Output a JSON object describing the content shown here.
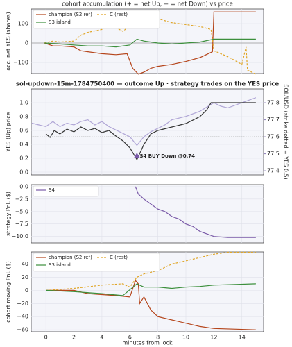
{
  "chart_data": [
    {
      "type": "line",
      "title": "cohort accumulation (+ = net Up, − = net Down) vs price",
      "ylabel": "acc. net YES (shares)",
      "xlim": [
        -1.05,
        15.55
      ],
      "xticks": [
        0,
        2,
        4,
        6,
        8,
        10,
        12,
        14
      ],
      "ylim": [
        -157,
        175
      ],
      "yticks": [
        {
          "value": -100,
          "label": "−100"
        },
        0,
        100
      ],
      "grid": true,
      "hline": 0,
      "legend": "upper-left",
      "legend_columns": 2,
      "series": [
        {
          "name": "champion (S2 ref)",
          "color": "#b5451b",
          "x": [
            -0.1,
            0.5,
            1,
            2,
            2.5,
            3,
            4,
            5,
            5.8,
            6.2,
            6.6,
            7,
            7.5,
            8,
            9,
            10,
            11,
            11.9,
            12,
            15
          ],
          "values": [
            0,
            -15,
            -15,
            -20,
            -40,
            -45,
            -55,
            -60,
            -55,
            -130,
            -160,
            -150,
            -130,
            -120,
            -110,
            -95,
            -75,
            -45,
            160,
            160
          ]
        },
        {
          "name": "C (rest)",
          "color": "#e0a526",
          "dash": true,
          "x": [
            -0.1,
            0.5,
            1,
            2,
            2.5,
            3,
            4,
            4.5,
            5,
            5.5,
            6,
            6.5,
            7,
            8,
            9,
            10,
            11,
            11.8,
            12,
            13,
            14,
            14.3,
            14.4,
            15
          ],
          "values": [
            0,
            10,
            5,
            10,
            40,
            55,
            70,
            110,
            80,
            60,
            90,
            150,
            145,
            125,
            105,
            95,
            85,
            70,
            -40,
            -70,
            -110,
            -20,
            -140,
            -160
          ]
        },
        {
          "name": "S3 island",
          "color": "#3c8f3c",
          "x": [
            -0.1,
            1,
            2,
            3,
            4,
            5,
            6,
            6.5,
            7,
            8,
            9,
            10,
            11,
            12,
            15
          ],
          "values": [
            0,
            -5,
            -10,
            -15,
            -15,
            -20,
            -10,
            20,
            10,
            0,
            -5,
            0,
            5,
            20,
            20
          ]
        }
      ]
    },
    {
      "type": "line",
      "title": "sol-updown-15m-1784750400 — outcome Up · strategy trades on the YES price",
      "ylabel": "YES (Up) price",
      "y2label": "SOL/USD (strike dotted = YES 0.5)",
      "xlim": [
        -1.05,
        15.55
      ],
      "xticks": [
        0,
        2,
        4,
        6,
        8,
        10,
        12,
        14
      ],
      "ylim": [
        -0.04,
        1.2
      ],
      "yticks": [
        {
          "value": 0,
          "label": "0.0"
        },
        0.2,
        0.4,
        0.6,
        0.8,
        {
          "value": 1,
          "label": "1.0"
        }
      ],
      "y2lim": [
        77.376,
        77.882
      ],
      "y2ticks": [
        77.4,
        77.5,
        77.6,
        77.7,
        77.8
      ],
      "y2color": "#8a7ab8",
      "grid": true,
      "strike_y2": 77.6,
      "series": [
        {
          "name": "SOL/USD",
          "color": "#b0a6d6",
          "axis": "y2",
          "x": [
            -1,
            -0.5,
            0,
            0.5,
            1,
            1.5,
            2,
            2.5,
            3,
            3.5,
            4,
            4.5,
            5,
            5.5,
            6,
            6.5,
            7,
            7.5,
            8,
            8.5,
            9,
            10,
            11,
            12,
            12.5,
            13,
            14,
            15
          ],
          "values": [
            77.68,
            77.67,
            77.66,
            77.69,
            77.66,
            77.68,
            77.67,
            77.69,
            77.7,
            77.67,
            77.69,
            77.66,
            77.64,
            77.62,
            77.6,
            77.55,
            77.6,
            77.63,
            77.65,
            77.67,
            77.7,
            77.72,
            77.75,
            77.8,
            77.78,
            77.77,
            77.8,
            77.83
          ]
        },
        {
          "name": "YES price",
          "color": "#333333",
          "x": [
            0,
            0.3,
            0.6,
            1,
            1.5,
            2,
            2.5,
            3,
            3.5,
            4,
            4.5,
            5,
            5.5,
            6,
            6.5,
            7,
            7.5,
            8,
            9,
            10,
            11,
            11.5,
            11.8,
            15
          ],
          "values": [
            0.55,
            0.5,
            0.6,
            0.55,
            0.62,
            0.58,
            0.65,
            0.6,
            0.63,
            0.57,
            0.6,
            0.52,
            0.45,
            0.35,
            0.18,
            0.4,
            0.55,
            0.6,
            0.65,
            0.7,
            0.8,
            0.9,
            1,
            1
          ]
        }
      ],
      "markers": [
        {
          "label": "S4 BUY Down @0.74",
          "x": 6.5,
          "y": 0.24,
          "color": "#7a5aa8"
        }
      ]
    },
    {
      "type": "line",
      "ylabel": "strategy PnL ($)",
      "xlim": [
        -1.05,
        15.55
      ],
      "xticks": [
        0,
        2,
        4,
        6,
        8,
        10,
        12,
        14
      ],
      "ylim": [
        -11.3,
        0.4
      ],
      "yticks": [
        {
          "value": -10,
          "label": "−10.0"
        },
        {
          "value": -7.5,
          "label": "−7.5"
        },
        {
          "value": -5,
          "label": "−5.0"
        },
        {
          "value": -2.5,
          "label": "−2.5"
        },
        {
          "value": 0,
          "label": "0.0"
        }
      ],
      "grid": true,
      "legend": "upper-left",
      "legend_columns": 1,
      "series": [
        {
          "name": "S4",
          "color": "#7a5aa8",
          "x": [
            6.4,
            6.6,
            7,
            7.5,
            8,
            8.5,
            9,
            9.5,
            10,
            10.5,
            11,
            11.5,
            12,
            13,
            15
          ],
          "values": [
            0,
            -1.5,
            -2.5,
            -3.5,
            -4.5,
            -5,
            -6,
            -6.5,
            -7.5,
            -8,
            -9,
            -9.5,
            -10,
            -10.2,
            -10.2
          ]
        }
      ]
    },
    {
      "type": "line",
      "ylabel": "cohort moving PnL ($)",
      "xlabel": "minutes from lock",
      "xtick_labels": true,
      "xlim": [
        -1.05,
        15.55
      ],
      "xticks": [
        0,
        2,
        4,
        6,
        8,
        10,
        12,
        14
      ],
      "ylim": [
        -63,
        58.5
      ],
      "yticks": [
        {
          "value": -60,
          "label": "−60"
        },
        {
          "value": -40,
          "label": "−40"
        },
        {
          "value": -20,
          "label": "−20"
        },
        0,
        20,
        40
      ],
      "grid": true,
      "legend": "upper-left",
      "legend_columns": 2,
      "series": [
        {
          "name": "champion (S2 ref)",
          "color": "#b5451b",
          "x": [
            0,
            2,
            3,
            5,
            6,
            6.4,
            6.6,
            6.7,
            7,
            7.5,
            8,
            9,
            10,
            11,
            12,
            15
          ],
          "values": [
            0,
            0,
            -5,
            -8,
            -10,
            15,
            10,
            -20,
            -10,
            -30,
            -40,
            -45,
            -50,
            -55,
            -58,
            -60
          ]
        },
        {
          "name": "C (rest)",
          "color": "#e0a526",
          "dash": true,
          "x": [
            0,
            2,
            4,
            5.5,
            6,
            6.5,
            7,
            8,
            9,
            10,
            11,
            12,
            13,
            15
          ],
          "values": [
            0,
            3,
            8,
            10,
            5,
            20,
            25,
            30,
            40,
            45,
            50,
            55,
            58,
            58
          ]
        },
        {
          "name": "S3 island",
          "color": "#3c8f3c",
          "x": [
            0,
            2,
            4,
            5.5,
            6.5,
            7,
            8,
            9,
            10,
            11,
            12,
            15
          ],
          "values": [
            0,
            -2,
            -5,
            -8,
            10,
            5,
            5,
            3,
            5,
            6,
            8,
            10
          ]
        }
      ]
    }
  ]
}
